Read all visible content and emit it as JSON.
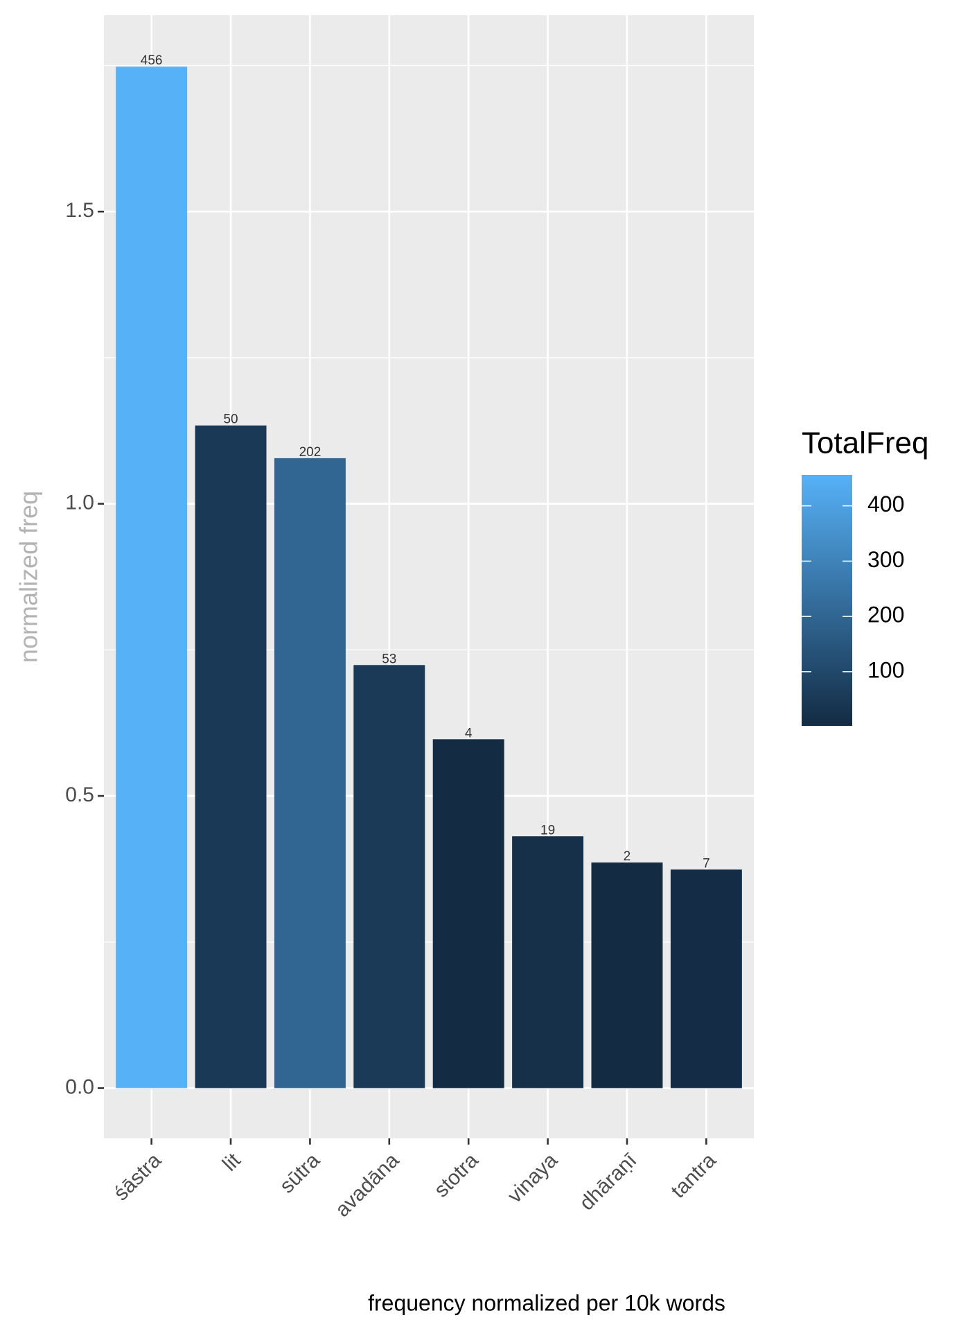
{
  "chart_data": {
    "type": "bar",
    "y_label": "normalized freq",
    "caption": "frequency normalized per 10k words",
    "categories": [
      "śāstra",
      "lit",
      "sūtra",
      "avadāna",
      "stotra",
      "vinaya",
      "dhāraṇī",
      "tantra"
    ],
    "values": [
      1.748,
      1.134,
      1.078,
      0.724,
      0.597,
      0.431,
      0.386,
      0.374
    ],
    "fill_values": [
      456,
      50,
      202,
      53,
      4,
      19,
      2,
      7
    ],
    "legend_title": "TotalFreq",
    "low_color": "#132B43",
    "high_color": "#56B1F7",
    "colorlim": [
      2,
      456
    ],
    "colorticks": [
      100,
      200,
      300,
      400
    ],
    "ylim": [
      -0.086,
      1.836
    ],
    "yticks": [
      {
        "value": 0,
        "label": "0.0"
      },
      0.5,
      {
        "value": 1,
        "label": "1.0"
      },
      1.5
    ],
    "minor_yticks": [
      0.25,
      0.75,
      1.25,
      1.75
    ],
    "grid": true
  }
}
